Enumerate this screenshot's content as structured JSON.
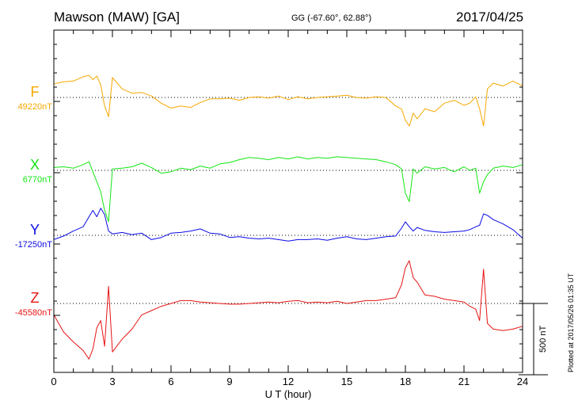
{
  "header": {
    "station": "Mawson (MAW)  [GA]",
    "coords": "GG (-67.60°,  62.88°)",
    "date": "2017/04/25"
  },
  "footer": {
    "plotted": "Plotted at 2017/05/26 01:35 UT",
    "scale": "500 nT"
  },
  "chart_data": {
    "type": "line",
    "title": "Mawson (MAW)  [GA]",
    "xlabel": "U T (hour)",
    "ylabel": "",
    "xlim": [
      0,
      24
    ],
    "x_ticks": [
      "0",
      "3",
      "6",
      "9",
      "12",
      "15",
      "18",
      "21",
      "24"
    ],
    "scale_bar_nT": 500,
    "grid": "dotted baselines per component",
    "series": [
      {
        "name": "F",
        "baseline_label": "49220nT",
        "color": "#f5a800",
        "x": [
          0,
          0.5,
          1,
          1.5,
          1.8,
          2,
          2.2,
          2.4,
          2.6,
          2.8,
          3,
          3.5,
          4,
          4.5,
          5,
          5.5,
          6,
          6.5,
          7,
          7.5,
          8,
          8.5,
          9,
          9.5,
          10,
          10.5,
          11,
          11.5,
          12,
          12.5,
          13,
          13.5,
          14,
          14.5,
          15,
          15.5,
          16,
          16.5,
          17,
          17.5,
          17.8,
          18,
          18.2,
          18.4,
          18.6,
          19,
          19.5,
          20,
          20.5,
          21,
          21.3,
          21.6,
          21.8,
          22,
          22.2,
          22.5,
          23,
          23.5,
          24
        ],
        "y": [
          95,
          110,
          115,
          145,
          155,
          125,
          150,
          90,
          -60,
          -135,
          140,
          60,
          30,
          35,
          10,
          -40,
          -75,
          -60,
          -70,
          -35,
          -10,
          -10,
          -5,
          -20,
          0,
          5,
          -5,
          10,
          -15,
          5,
          -10,
          0,
          5,
          10,
          15,
          0,
          -5,
          5,
          0,
          -60,
          -80,
          -160,
          -200,
          -110,
          -150,
          -80,
          -100,
          -40,
          -20,
          -55,
          -40,
          5,
          -80,
          -200,
          60,
          100,
          80,
          115,
          80
        ]
      },
      {
        "name": "X",
        "baseline_label": "6770nT",
        "color": "#14e614",
        "x": [
          0,
          0.5,
          1,
          1.5,
          1.8,
          2,
          2.2,
          2.4,
          2.6,
          2.8,
          3,
          3.5,
          4,
          4.5,
          5,
          5.5,
          6,
          6.5,
          7,
          7.5,
          8,
          8.5,
          9,
          9.5,
          10,
          10.5,
          11,
          11.5,
          12,
          12.5,
          13,
          13.5,
          14,
          14.5,
          15,
          15.5,
          16,
          16.5,
          17,
          17.5,
          17.8,
          18,
          18.2,
          18.4,
          18.6,
          19,
          19.5,
          20,
          20.5,
          21,
          21.3,
          21.6,
          21.8,
          22,
          22.2,
          22.5,
          23,
          23.5,
          24
        ],
        "y": [
          20,
          25,
          15,
          40,
          60,
          -10,
          -80,
          -150,
          -280,
          -360,
          10,
          15,
          25,
          50,
          20,
          -20,
          -10,
          15,
          5,
          30,
          15,
          45,
          55,
          75,
          90,
          85,
          75,
          90,
          80,
          95,
          80,
          90,
          85,
          95,
          90,
          85,
          80,
          75,
          60,
          40,
          10,
          -160,
          -220,
          10,
          -20,
          25,
          10,
          20,
          -10,
          25,
          0,
          15,
          -160,
          -80,
          -30,
          15,
          30,
          20,
          40
        ]
      },
      {
        "name": "Y",
        "baseline_label": "-17250nT",
        "color": "#0a0ae6",
        "x": [
          0,
          0.5,
          1,
          1.5,
          1.8,
          2,
          2.2,
          2.4,
          2.6,
          2.8,
          3,
          3.5,
          4,
          4.5,
          5,
          5.5,
          6,
          6.5,
          7,
          7.5,
          8,
          8.5,
          9,
          9.5,
          10,
          10.5,
          11,
          11.5,
          12,
          12.5,
          13,
          13.5,
          14,
          14.5,
          15,
          15.5,
          16,
          16.5,
          17,
          17.5,
          17.8,
          18,
          18.2,
          18.4,
          18.6,
          19,
          19.5,
          20,
          20.5,
          21,
          21.3,
          21.6,
          21.8,
          22,
          22.2,
          22.5,
          23,
          23.5,
          24
        ],
        "y": [
          -30,
          -5,
          30,
          60,
          130,
          175,
          130,
          190,
          145,
          30,
          10,
          20,
          5,
          15,
          -30,
          -15,
          15,
          20,
          30,
          45,
          15,
          10,
          -15,
          -10,
          -20,
          -25,
          -20,
          -30,
          -40,
          -30,
          -30,
          -25,
          -35,
          -20,
          -10,
          -25,
          -30,
          -20,
          -10,
          -5,
          50,
          95,
          60,
          30,
          55,
          35,
          25,
          20,
          25,
          30,
          40,
          60,
          70,
          150,
          140,
          110,
          80,
          40,
          -20
        ]
      },
      {
        "name": "Z",
        "baseline_label": "-45580nT",
        "color": "#e61414",
        "x": [
          0,
          0.5,
          1,
          1.5,
          1.8,
          2,
          2.2,
          2.4,
          2.6,
          2.8,
          3,
          3.5,
          4,
          4.5,
          5,
          5.5,
          6,
          6.5,
          7,
          7.5,
          8,
          8.5,
          9,
          9.5,
          10,
          10.5,
          11,
          11.5,
          12,
          12.5,
          13,
          13.5,
          14,
          14.5,
          15,
          15.5,
          16,
          16.5,
          17,
          17.5,
          17.8,
          18,
          18.2,
          18.4,
          18.6,
          19,
          19.5,
          20,
          20.5,
          21,
          21.3,
          21.6,
          21.8,
          22,
          22.2,
          22.5,
          23,
          23.5,
          24
        ],
        "y": [
          -80,
          -200,
          -270,
          -330,
          -390,
          -320,
          -170,
          -120,
          -300,
          120,
          -340,
          -250,
          -180,
          -80,
          -50,
          -20,
          0,
          20,
          20,
          10,
          5,
          0,
          -5,
          -5,
          0,
          5,
          10,
          5,
          15,
          20,
          5,
          10,
          5,
          15,
          0,
          10,
          20,
          20,
          30,
          40,
          130,
          250,
          300,
          180,
          150,
          60,
          50,
          30,
          20,
          10,
          -20,
          -40,
          -120,
          240,
          -140,
          -180,
          -190,
          -180,
          -160
        ]
      }
    ],
    "axes_pixels_note": ""
  }
}
